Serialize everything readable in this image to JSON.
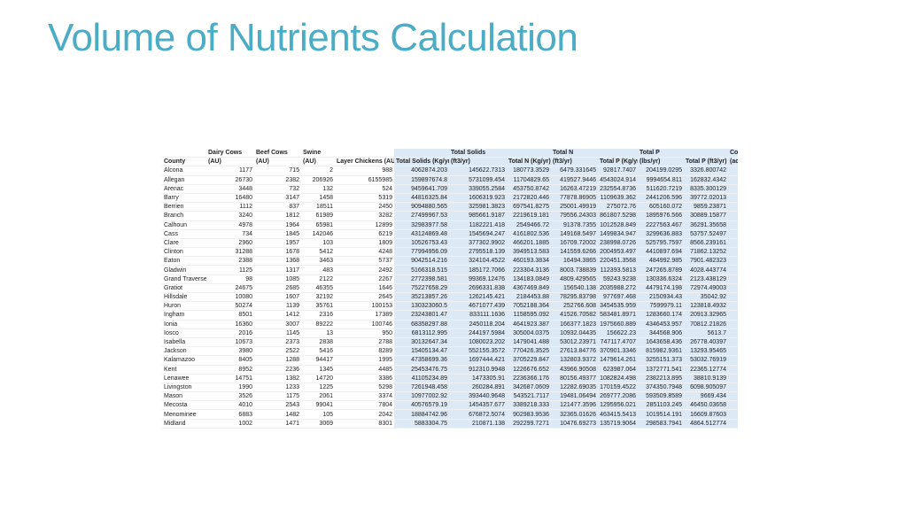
{
  "title": "Volume of Nutrients Calculation",
  "table": {
    "header_top": [
      null,
      "Dairy Cows",
      "Beef Cows",
      "Swine",
      null,
      null,
      "Total Solids",
      null,
      "Total N",
      null,
      "Total P",
      null,
      "Cou"
    ],
    "header": [
      "County",
      "(AU)",
      "(AU)",
      "(AU)",
      "Layer Chickens (AU)",
      "Total Solids (Kg/yr)",
      "(ft3/yr)",
      "Total N (Kg/yr)",
      "(ft3/yr)",
      "Total P (Kg/yr)",
      "(lbs/yr)",
      "Total P (ft3/yr)",
      "(ac"
    ],
    "rows": [
      [
        "Alcona",
        "1177",
        "715",
        "2",
        "988",
        "4062874.203",
        "145622.7313",
        "180773.3529",
        "6479.331645",
        "92817.7407",
        "204199.0295",
        "3326.800742"
      ],
      [
        "Allegan",
        "26730",
        "2382",
        "206926",
        "6155985",
        "159897674.8",
        "5731099.454",
        "11704829.65",
        "419527.9446",
        "4543024.914",
        "9994654.811",
        "162832.4342"
      ],
      [
        "Arenac",
        "3448",
        "732",
        "132",
        "524",
        "9459641.709",
        "339055.2584",
        "453750.8742",
        "16263.47219",
        "232554.8736",
        "511620.7219",
        "8335.300129"
      ],
      [
        "Barry",
        "16480",
        "3147",
        "1458",
        "5319",
        "44816325.84",
        "1606319.923",
        "2172820.446",
        "77878.86905",
        "1109639.362",
        "2441206.596",
        "39772.02013"
      ],
      [
        "Berrien",
        "1112",
        "837",
        "18511",
        "2450",
        "9094880.565",
        "325981.3823",
        "697541.8275",
        "25001.49919",
        "275072.76",
        "605160.072",
        "9859.23871"
      ],
      [
        "Branch",
        "3240",
        "1812",
        "61989",
        "3282",
        "27499967.53",
        "985661.9187",
        "2219619.181",
        "79556.24303",
        "861807.5298",
        "1895976.566",
        "30889.15877"
      ],
      [
        "Calhoun",
        "4978",
        "1964",
        "65981",
        "12899",
        "32983977.58",
        "1182221.418",
        "2549466.72",
        "91378.7355",
        "1012528.849",
        "2227563.467",
        "36291.35658"
      ],
      [
        "Cass",
        "734",
        "1845",
        "142046",
        "6219",
        "43124869.48",
        "1545694.247",
        "4161802.536",
        "149168.5497",
        "1499834.947",
        "3299636.883",
        "53757.52497"
      ],
      [
        "Clare",
        "2960",
        "1957",
        "103",
        "1809",
        "10526753.43",
        "377302.9902",
        "466201.1885",
        "16709.72002",
        "238998.0726",
        "525795.7597",
        "8566.239161"
      ],
      [
        "Clinton",
        "31288",
        "1678",
        "5412",
        "4248",
        "77994956.09",
        "2795518.139",
        "3949513.583",
        "141559.6266",
        "2004953.497",
        "4410897.694",
        "71862.13252"
      ],
      [
        "Eaton",
        "2388",
        "1368",
        "3463",
        "5737",
        "9042514.216",
        "324104.4522",
        "460193.3834",
        "16494.3865",
        "220451.3568",
        "484992.985",
        "7901.482323"
      ],
      [
        "Gladwin",
        "1125",
        "1317",
        "483",
        "2492",
        "5166318.515",
        "185172.7066",
        "223304.3136",
        "8003.738839",
        "112393.5813",
        "247265.8789",
        "4028.443774"
      ],
      [
        "Grand Traverse",
        "98",
        "1085",
        "2122",
        "2267",
        "2772398.581",
        "99369.12476",
        "134183.0849",
        "4809.429565",
        "59243.9238",
        "130336.6324",
        "2123.438129"
      ],
      [
        "Gratiot",
        "24675",
        "2685",
        "46355",
        "1646",
        "75227658.29",
        "2696331.838",
        "4367469.849",
        "156540.138",
        "2035988.272",
        "4479174.198",
        "72974.49003"
      ],
      [
        "Hillsdale",
        "10080",
        "1607",
        "32192",
        "2645",
        "35213857.26",
        "1262145.421",
        "2184453.88",
        "78295.83798",
        "977697.468",
        "2150934.43",
        "35042.92"
      ],
      [
        "Huron",
        "50274",
        "1139",
        "35761",
        "100153",
        "130323060.5",
        "4671077.439",
        "7052188.364",
        "252766.608",
        "3454535.959",
        "7599979.11",
        "123818.4932"
      ],
      [
        "Ingham",
        "8501",
        "1412",
        "2316",
        "17389",
        "23243801.47",
        "833111.1636",
        "1158595.092",
        "41526.70582",
        "583481.8971",
        "1283660.174",
        "20913.32965"
      ],
      [
        "Ionia",
        "16360",
        "3007",
        "89222",
        "100746",
        "68358297.88",
        "2450118.204",
        "4641923.387",
        "166377.1823",
        "1975660.889",
        "4346453.957",
        "70812.21826"
      ],
      [
        "Iosco",
        "2016",
        "1145",
        "13",
        "950",
        "6813112.995",
        "244197.5984",
        "305004.0375",
        "10932.04435",
        "156622.23",
        "344568.906",
        "5613.7"
      ],
      [
        "Isabella",
        "10673",
        "2373",
        "2838",
        "2788",
        "30132647.34",
        "1080023.202",
        "1479041.488",
        "53012.23971",
        "747117.4707",
        "1643658.436",
        "26778.40397"
      ],
      [
        "Jackson",
        "3980",
        "2522",
        "5416",
        "8289",
        "15405134.47",
        "552155.3572",
        "770426.3525",
        "27613.84776",
        "370901.3346",
        "815982.9361",
        "13293.95465"
      ],
      [
        "Kalamazoo",
        "8405",
        "1288",
        "94417",
        "1995",
        "47358699.36",
        "1697444.421",
        "3705229.847",
        "132803.9372",
        "1479614.261",
        "3255151.373",
        "53032.76919"
      ],
      [
        "Kent",
        "8952",
        "2236",
        "1345",
        "4485",
        "25453476.75",
        "912310.9948",
        "1226676.652",
        "43966.90508",
        "623987.064",
        "1372771.541",
        "22365.12774"
      ],
      [
        "Lenawee",
        "14751",
        "1382",
        "14720",
        "3386",
        "41105234.89",
        "1473305.91",
        "2236366.176",
        "80156.49377",
        "1082824.498",
        "2382213.895",
        "38810.9139"
      ],
      [
        "Livingston",
        "1990",
        "1233",
        "1225",
        "5298",
        "7261948.458",
        "260284.891",
        "342687.0609",
        "12282.69035",
        "170159.4522",
        "374350.7948",
        "6098.905097"
      ],
      [
        "Mason",
        "3526",
        "1175",
        "2061",
        "3374",
        "10977002.92",
        "393440.9648",
        "543521.7117",
        "19481.06494",
        "269777.2086",
        "593509.8589",
        "9669.434"
      ],
      [
        "Mecosta",
        "4010",
        "2543",
        "99041",
        "7804",
        "40576579.19",
        "1454357.677",
        "3389218.333",
        "121477.3596",
        "1295956.021",
        "2851103.245",
        "46450.03658"
      ],
      [
        "Menominee",
        "6883",
        "1482",
        "105",
        "2042",
        "18884742.96",
        "676872.5074",
        "902983.9536",
        "32365.01626",
        "463415.5413",
        "1019514.191",
        "16609.87603"
      ],
      [
        "Midland",
        "1002",
        "1471",
        "3069",
        "8301",
        "5883304.75",
        "210871.138",
        "292299.7271",
        "10476.69273",
        "135719.9064",
        "298583.7941",
        "4864.512774"
      ]
    ]
  }
}
